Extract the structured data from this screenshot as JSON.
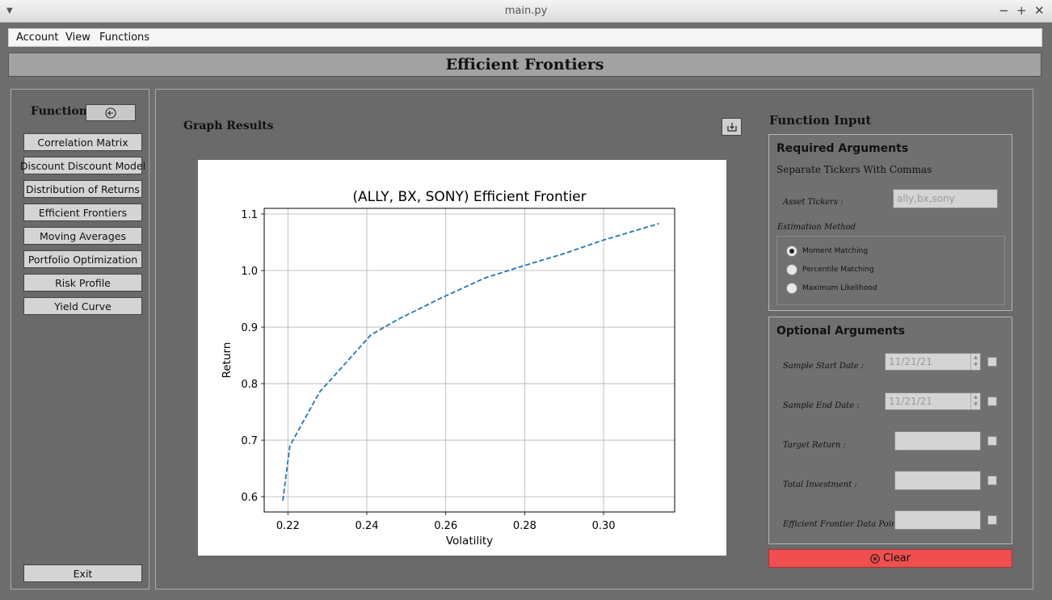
{
  "window": {
    "title": "main.py",
    "controls": [
      "−",
      "+",
      "✕"
    ]
  },
  "menubar": {
    "items": [
      "Account",
      "View",
      "Functions"
    ]
  },
  "header": {
    "title": "Efficient Frontiers"
  },
  "sidebar": {
    "title": "Functions",
    "back_icon": "back-arrow-icon",
    "items": [
      "Correlation Matrix",
      "Discount Discount Model",
      "Distribution of Returns",
      "Efficient Frontiers",
      "Moving Averages",
      "Portfolio Optimization",
      "Risk Profile",
      "Yield Curve"
    ],
    "exit_label": "Exit"
  },
  "graph": {
    "section_title": "Graph Results",
    "download_icon": "download-icon"
  },
  "chart_data": {
    "type": "line",
    "title": "(ALLY, BX, SONY) Efficient Frontier",
    "xlabel": "Volatility",
    "ylabel": "Return",
    "xlim": [
      0.214,
      0.318
    ],
    "ylim": [
      0.573,
      1.11
    ],
    "xticks": [
      "0.22",
      "0.24",
      "0.26",
      "0.28",
      "0.30"
    ],
    "yticks": [
      "0.6",
      "0.7",
      "0.8",
      "0.9",
      "1.0",
      "1.1"
    ],
    "grid": true,
    "line_color": "#1f77b4",
    "line_style": "dashed",
    "x": [
      0.2187,
      0.2205,
      0.228,
      0.231,
      0.241,
      0.248,
      0.259,
      0.27,
      0.28,
      0.29,
      0.3,
      0.314
    ],
    "y": [
      0.593,
      0.69,
      0.785,
      0.808,
      0.886,
      0.914,
      0.952,
      0.987,
      1.009,
      1.03,
      1.054,
      1.083
    ]
  },
  "function_input": {
    "title": "Function Input",
    "required": {
      "heading": "Required Arguments",
      "note": "Separate Tickers With Commas",
      "asset_tickers_label": "Asset Tickers :",
      "asset_tickers_placeholder": "ally,bx,sony",
      "estimation_label": "Estimation Method",
      "methods": [
        "Moment Matching",
        "Percentile Matching",
        "Maximum Likelihood"
      ],
      "selected_method": "Moment Matching"
    },
    "optional": {
      "heading": "Optional Arguments",
      "start_label": "Sample Start Date :",
      "start_value": "11/21/21",
      "end_label": "Sample End Date :",
      "end_value": "11/21/21",
      "target_label": "Target Return :",
      "investment_label": "Total Investment :",
      "points_label": "Efficient Frontier Data Points :"
    },
    "clear_label": "Clear"
  }
}
